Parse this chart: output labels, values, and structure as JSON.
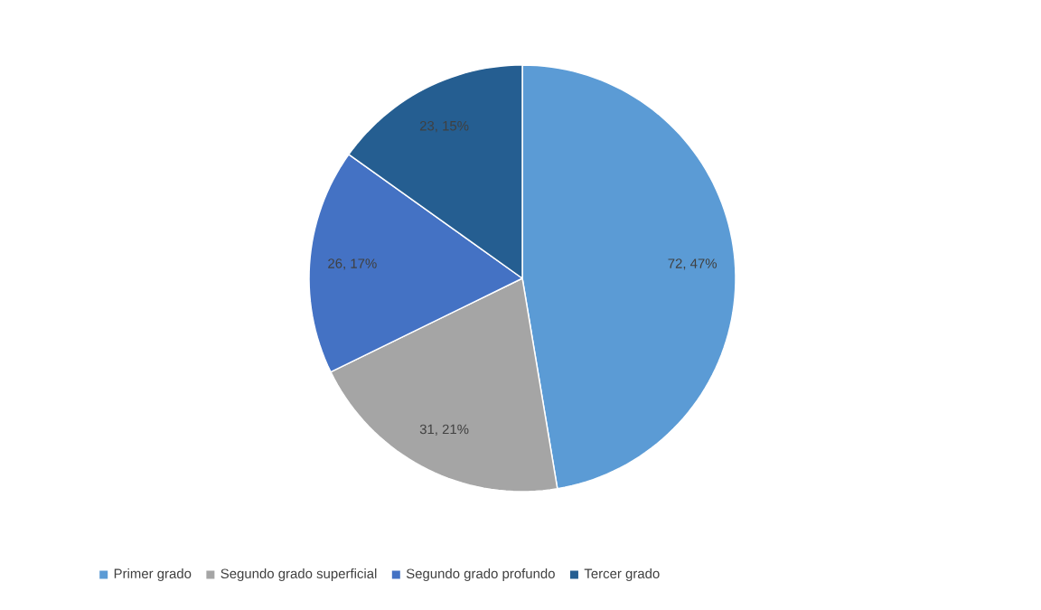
{
  "chart_data": {
    "type": "pie",
    "categories": [
      "Primer grado",
      "Segundo grado superficial",
      "Segundo grado profundo",
      "Tercer grado"
    ],
    "values": [
      72,
      31,
      26,
      23
    ],
    "colors": [
      "#5b9bd5",
      "#a5a5a5",
      "#4472c4",
      "#255e91"
    ],
    "value_labels": [
      "72, 47%",
      "31, 21%",
      "26, 17%",
      "23, 15%"
    ],
    "legend": "bottom"
  }
}
